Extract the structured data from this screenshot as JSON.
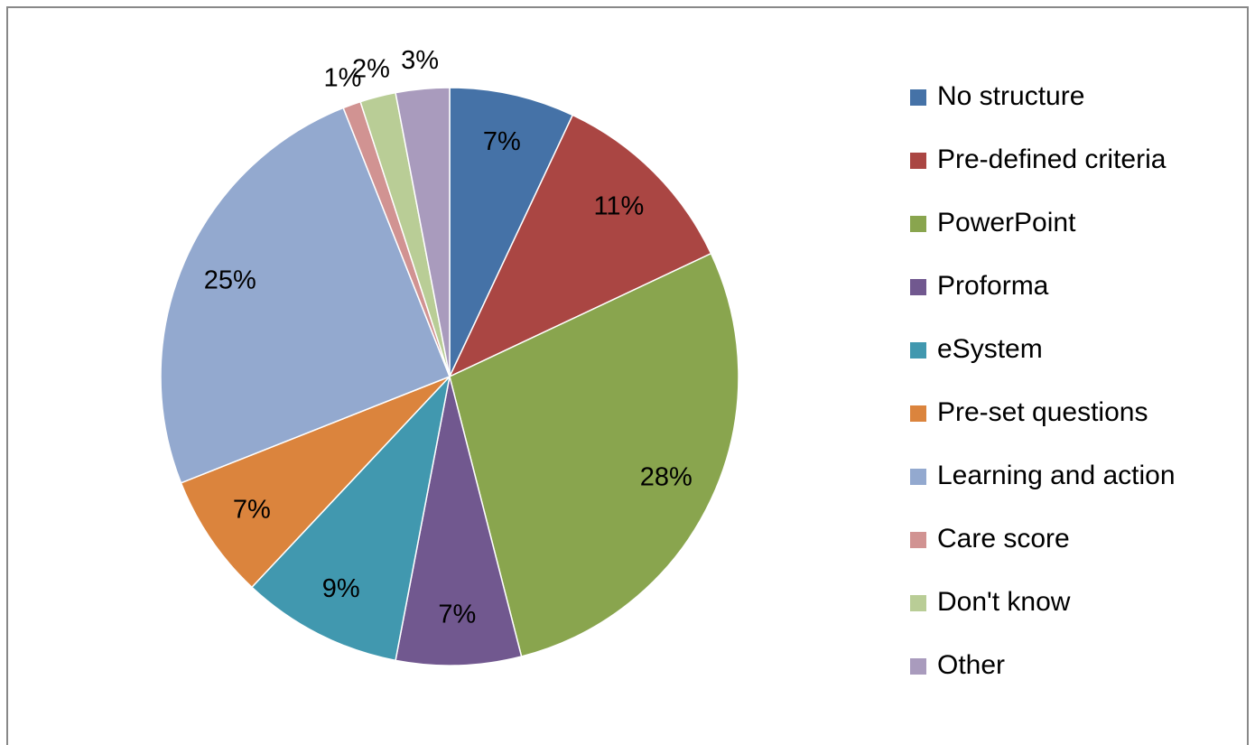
{
  "chart_data": {
    "type": "pie",
    "categories": [
      "No structure",
      "Pre-defined criteria",
      "PowerPoint",
      "Proforma",
      "eSystem",
      "Pre-set questions",
      "Learning and action",
      "Care score",
      "Don't know",
      "Other"
    ],
    "values": [
      7,
      11,
      28,
      7,
      9,
      7,
      25,
      1,
      2,
      3
    ],
    "value_labels": [
      "7%",
      "11%",
      "28%",
      "7%",
      "9%",
      "7%",
      "25%",
      "1%",
      "2%",
      "3%"
    ],
    "colors": [
      "#4572a7",
      "#aa4643",
      "#89a54e",
      "#71588f",
      "#4198af",
      "#db843d",
      "#93a9cf",
      "#d19392",
      "#b9cd96",
      "#a99bbd"
    ],
    "legend": "right"
  }
}
